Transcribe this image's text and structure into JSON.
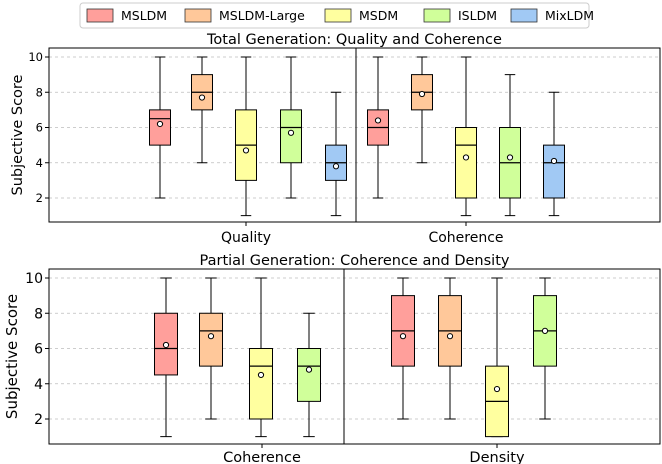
{
  "legend": [
    {
      "name": "MSLDM",
      "color": "#ff9f9b"
    },
    {
      "name": "MSLDM-Large",
      "color": "#ffc89a"
    },
    {
      "name": "MSDM",
      "color": "#ffff9f"
    },
    {
      "name": "ISLDM",
      "color": "#d0ff9a"
    },
    {
      "name": "MixLDM",
      "color": "#a1c9f4"
    }
  ],
  "chart_data": [
    {
      "type": "box",
      "title": "Total Generation: Quality and Coherence",
      "ylabel": "Subjective Score",
      "ylim": [
        1,
        10.5
      ],
      "yticks": [
        2,
        4,
        6,
        8,
        10
      ],
      "grid": "y-dashed",
      "groups": [
        {
          "label": "Quality",
          "boxes": [
            {
              "series": "MSLDM",
              "min": 2,
              "q1": 5,
              "median": 6.5,
              "q3": 7,
              "max": 10,
              "mean": 6.2
            },
            {
              "series": "MSLDM-Large",
              "min": 4,
              "q1": 7,
              "median": 8,
              "q3": 9,
              "max": 10,
              "mean": 7.7
            },
            {
              "series": "MSDM",
              "min": 1,
              "q1": 3,
              "median": 5,
              "q3": 7,
              "max": 10,
              "mean": 4.7
            },
            {
              "series": "ISLDM",
              "min": 2,
              "q1": 4,
              "median": 6,
              "q3": 7,
              "max": 10,
              "mean": 5.7
            },
            {
              "series": "MixLDM",
              "min": 1,
              "q1": 3,
              "median": 4,
              "q3": 5,
              "max": 8,
              "mean": 3.8
            }
          ]
        },
        {
          "label": "Coherence",
          "boxes": [
            {
              "series": "MSLDM",
              "min": 2,
              "q1": 5,
              "median": 6,
              "q3": 7,
              "max": 10,
              "mean": 6.4
            },
            {
              "series": "MSLDM-Large",
              "min": 4,
              "q1": 7,
              "median": 8,
              "q3": 9,
              "max": 10,
              "mean": 7.9
            },
            {
              "series": "MSDM",
              "min": 1,
              "q1": 2,
              "median": 5,
              "q3": 6,
              "max": 10,
              "mean": 4.3
            },
            {
              "series": "ISLDM",
              "min": 1,
              "q1": 2,
              "median": 4,
              "q3": 6,
              "max": 9,
              "mean": 4.3
            },
            {
              "series": "MixLDM",
              "min": 1,
              "q1": 2,
              "median": 4,
              "q3": 5,
              "max": 8,
              "mean": 4.1
            }
          ]
        }
      ]
    },
    {
      "type": "box",
      "title": "Partial Generation: Coherence and Density",
      "ylabel": "Subjective Score",
      "ylim": [
        1,
        10.5
      ],
      "yticks": [
        2,
        4,
        6,
        8,
        10
      ],
      "grid": "y-dashed",
      "groups": [
        {
          "label": "Coherence",
          "boxes": [
            {
              "series": "MSLDM",
              "min": 1,
              "q1": 4.5,
              "median": 6,
              "q3": 8,
              "max": 10,
              "mean": 6.2
            },
            {
              "series": "MSLDM-Large",
              "min": 2,
              "q1": 5,
              "median": 7,
              "q3": 8,
              "max": 10,
              "mean": 6.7
            },
            {
              "series": "MSDM",
              "min": 1,
              "q1": 2,
              "median": 5,
              "q3": 6,
              "max": 10,
              "mean": 4.5
            },
            {
              "series": "ISLDM",
              "min": 1,
              "q1": 3,
              "median": 5,
              "q3": 6,
              "max": 8,
              "mean": 4.8
            }
          ]
        },
        {
          "label": "Density",
          "boxes": [
            {
              "series": "MSLDM",
              "min": 2,
              "q1": 5,
              "median": 7,
              "q3": 9,
              "max": 10,
              "mean": 6.7
            },
            {
              "series": "MSLDM-Large",
              "min": 2,
              "q1": 5,
              "median": 7,
              "q3": 9,
              "max": 10,
              "mean": 6.7
            },
            {
              "series": "MSDM",
              "min": 1,
              "q1": 1,
              "median": 3,
              "q3": 5,
              "max": 10,
              "mean": 3.7
            },
            {
              "series": "ISLDM",
              "min": 2,
              "q1": 5,
              "median": 7,
              "q3": 9,
              "max": 10,
              "mean": 7.0
            }
          ]
        }
      ]
    }
  ]
}
